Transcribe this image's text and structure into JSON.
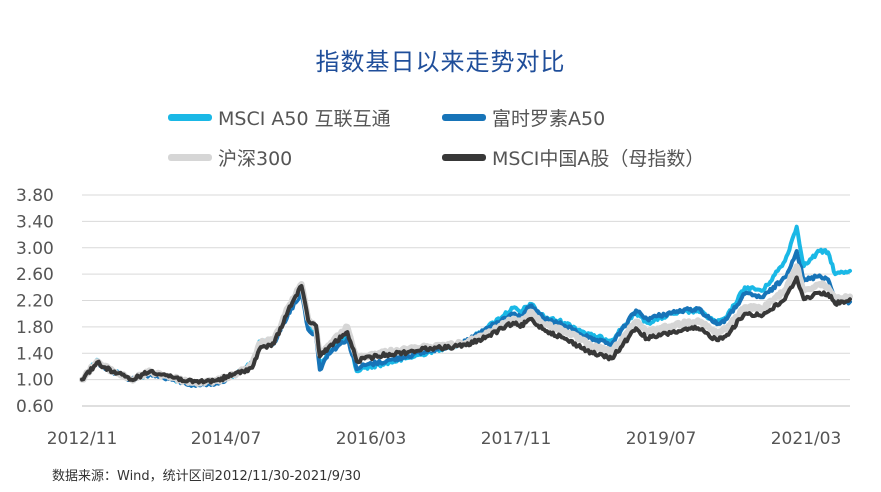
{
  "chart_data": {
    "type": "line",
    "title": "指数基日以来走势对比",
    "xlabel": "",
    "ylabel": "",
    "ylim": [
      0.6,
      3.8
    ],
    "yticks": [
      "3.80",
      "3.40",
      "3.00",
      "2.60",
      "2.20",
      "1.80",
      "1.40",
      "1.00",
      "0.60"
    ],
    "xticks": [
      "2012/11",
      "2014/07",
      "2016/03",
      "2017/11",
      "2019/07",
      "2021/03"
    ],
    "xlim": [
      "2012-11-30",
      "2021-09-30"
    ],
    "grid": true,
    "legend_position": "top",
    "series": [
      {
        "name": "MSCI A50 互联互通",
        "color": "#1ab8e6",
        "points": [
          [
            "2012-11-30",
            1.0
          ],
          [
            "2013-02-01",
            1.3
          ],
          [
            "2013-03-01",
            1.2
          ],
          [
            "2013-06-25",
            1.0
          ],
          [
            "2013-09-15",
            1.1
          ],
          [
            "2014-03-10",
            0.93
          ],
          [
            "2014-06-20",
            0.96
          ],
          [
            "2014-09-01",
            1.07
          ],
          [
            "2014-11-15",
            1.25
          ],
          [
            "2014-12-15",
            1.58
          ],
          [
            "2015-02-15",
            1.6
          ],
          [
            "2015-04-15",
            2.05
          ],
          [
            "2015-06-10",
            2.38
          ],
          [
            "2015-07-08",
            1.82
          ],
          [
            "2015-08-10",
            1.72
          ],
          [
            "2015-08-26",
            1.18
          ],
          [
            "2015-09-30",
            1.43
          ],
          [
            "2015-12-20",
            1.65
          ],
          [
            "2016-01-28",
            1.13
          ],
          [
            "2016-03-01",
            1.18
          ],
          [
            "2016-06-01",
            1.25
          ],
          [
            "2016-09-01",
            1.33
          ],
          [
            "2016-12-01",
            1.42
          ],
          [
            "2017-01-15",
            1.47
          ],
          [
            "2017-05-01",
            1.56
          ],
          [
            "2017-08-01",
            1.8
          ],
          [
            "2017-11-15",
            2.09
          ],
          [
            "2017-12-15",
            2.02
          ],
          [
            "2018-01-25",
            2.15
          ],
          [
            "2018-03-25",
            1.95
          ],
          [
            "2018-06-20",
            1.86
          ],
          [
            "2018-10-15",
            1.66
          ],
          [
            "2019-01-03",
            1.6
          ],
          [
            "2019-04-15",
            2.02
          ],
          [
            "2019-06-01",
            1.86
          ],
          [
            "2019-09-15",
            2.0
          ],
          [
            "2019-12-31",
            2.05
          ],
          [
            "2020-03-20",
            1.86
          ],
          [
            "2020-05-01",
            1.95
          ],
          [
            "2020-07-15",
            2.4
          ],
          [
            "2020-09-30",
            2.35
          ],
          [
            "2020-12-31",
            2.8
          ],
          [
            "2021-02-18",
            3.32
          ],
          [
            "2021-03-20",
            2.72
          ],
          [
            "2021-05-25",
            2.95
          ],
          [
            "2021-06-30",
            2.93
          ],
          [
            "2021-07-30",
            2.6
          ],
          [
            "2021-09-30",
            2.65
          ]
        ]
      },
      {
        "name": "富时罗素A50",
        "color": "#1774b8",
        "points": [
          [
            "2012-11-30",
            1.0
          ],
          [
            "2013-02-01",
            1.28
          ],
          [
            "2013-03-01",
            1.19
          ],
          [
            "2013-06-25",
            0.99
          ],
          [
            "2013-09-15",
            1.09
          ],
          [
            "2014-03-10",
            0.92
          ],
          [
            "2014-06-20",
            0.95
          ],
          [
            "2014-09-01",
            1.06
          ],
          [
            "2014-11-15",
            1.25
          ],
          [
            "2014-12-15",
            1.55
          ],
          [
            "2015-02-15",
            1.56
          ],
          [
            "2015-04-15",
            2.0
          ],
          [
            "2015-06-10",
            2.32
          ],
          [
            "2015-07-08",
            1.76
          ],
          [
            "2015-08-10",
            1.66
          ],
          [
            "2015-08-26",
            1.15
          ],
          [
            "2015-09-30",
            1.4
          ],
          [
            "2015-12-20",
            1.62
          ],
          [
            "2016-01-28",
            1.16
          ],
          [
            "2016-03-01",
            1.22
          ],
          [
            "2016-06-01",
            1.28
          ],
          [
            "2016-09-01",
            1.36
          ],
          [
            "2016-12-01",
            1.44
          ],
          [
            "2017-01-15",
            1.48
          ],
          [
            "2017-05-01",
            1.57
          ],
          [
            "2017-08-01",
            1.78
          ],
          [
            "2017-11-15",
            2.0
          ],
          [
            "2017-12-15",
            1.95
          ],
          [
            "2018-01-25",
            2.12
          ],
          [
            "2018-03-25",
            1.92
          ],
          [
            "2018-06-20",
            1.82
          ],
          [
            "2018-10-15",
            1.6
          ],
          [
            "2019-01-03",
            1.54
          ],
          [
            "2019-04-15",
            2.05
          ],
          [
            "2019-06-01",
            1.92
          ],
          [
            "2019-09-15",
            2.02
          ],
          [
            "2019-12-31",
            2.08
          ],
          [
            "2020-03-20",
            1.84
          ],
          [
            "2020-05-01",
            1.92
          ],
          [
            "2020-07-15",
            2.3
          ],
          [
            "2020-09-30",
            2.25
          ],
          [
            "2020-12-31",
            2.55
          ],
          [
            "2021-02-18",
            2.95
          ],
          [
            "2021-03-20",
            2.5
          ],
          [
            "2021-05-25",
            2.58
          ],
          [
            "2021-06-30",
            2.52
          ],
          [
            "2021-07-30",
            2.22
          ],
          [
            "2021-09-30",
            2.18
          ]
        ]
      },
      {
        "name": "沪深300",
        "color": "#d6d6d6",
        "points": [
          [
            "2012-11-30",
            1.0
          ],
          [
            "2013-02-01",
            1.28
          ],
          [
            "2013-03-01",
            1.2
          ],
          [
            "2013-06-25",
            1.0
          ],
          [
            "2013-09-15",
            1.12
          ],
          [
            "2014-03-10",
            0.95
          ],
          [
            "2014-06-20",
            0.98
          ],
          [
            "2014-09-01",
            1.08
          ],
          [
            "2014-11-15",
            1.22
          ],
          [
            "2014-12-15",
            1.55
          ],
          [
            "2015-02-15",
            1.6
          ],
          [
            "2015-04-15",
            2.1
          ],
          [
            "2015-06-10",
            2.45
          ],
          [
            "2015-07-08",
            1.92
          ],
          [
            "2015-08-10",
            1.8
          ],
          [
            "2015-08-26",
            1.38
          ],
          [
            "2015-09-30",
            1.52
          ],
          [
            "2015-12-20",
            1.8
          ],
          [
            "2016-01-28",
            1.32
          ],
          [
            "2016-03-01",
            1.36
          ],
          [
            "2016-06-01",
            1.42
          ],
          [
            "2016-09-01",
            1.46
          ],
          [
            "2016-12-01",
            1.5
          ],
          [
            "2017-01-15",
            1.5
          ],
          [
            "2017-05-01",
            1.56
          ],
          [
            "2017-08-01",
            1.7
          ],
          [
            "2017-11-15",
            1.92
          ],
          [
            "2017-12-15",
            1.86
          ],
          [
            "2018-01-25",
            2.03
          ],
          [
            "2018-03-25",
            1.84
          ],
          [
            "2018-06-20",
            1.74
          ],
          [
            "2018-10-15",
            1.5
          ],
          [
            "2019-01-03",
            1.42
          ],
          [
            "2019-04-15",
            1.88
          ],
          [
            "2019-06-01",
            1.72
          ],
          [
            "2019-09-15",
            1.82
          ],
          [
            "2019-12-31",
            1.9
          ],
          [
            "2020-03-20",
            1.7
          ],
          [
            "2020-05-01",
            1.78
          ],
          [
            "2020-07-15",
            2.1
          ],
          [
            "2020-09-30",
            2.08
          ],
          [
            "2020-12-31",
            2.36
          ],
          [
            "2021-02-18",
            2.72
          ],
          [
            "2021-03-20",
            2.35
          ],
          [
            "2021-05-25",
            2.45
          ],
          [
            "2021-06-30",
            2.4
          ],
          [
            "2021-07-30",
            2.24
          ],
          [
            "2021-09-30",
            2.26
          ]
        ]
      },
      {
        "name": "MSCI中国A股（母指数）",
        "color": "#383838",
        "points": [
          [
            "2012-11-30",
            1.0
          ],
          [
            "2013-02-01",
            1.26
          ],
          [
            "2013-03-01",
            1.19
          ],
          [
            "2013-06-25",
            1.0
          ],
          [
            "2013-09-15",
            1.13
          ],
          [
            "2014-03-10",
            0.96
          ],
          [
            "2014-06-20",
            0.99
          ],
          [
            "2014-09-01",
            1.08
          ],
          [
            "2014-11-15",
            1.18
          ],
          [
            "2014-12-15",
            1.46
          ],
          [
            "2015-02-15",
            1.55
          ],
          [
            "2015-04-15",
            2.05
          ],
          [
            "2015-06-10",
            2.42
          ],
          [
            "2015-07-08",
            1.9
          ],
          [
            "2015-08-10",
            1.82
          ],
          [
            "2015-08-26",
            1.35
          ],
          [
            "2015-09-30",
            1.48
          ],
          [
            "2015-12-20",
            1.72
          ],
          [
            "2016-01-28",
            1.28
          ],
          [
            "2016-03-01",
            1.32
          ],
          [
            "2016-06-01",
            1.38
          ],
          [
            "2016-09-01",
            1.42
          ],
          [
            "2016-12-01",
            1.48
          ],
          [
            "2017-01-15",
            1.48
          ],
          [
            "2017-05-01",
            1.52
          ],
          [
            "2017-08-01",
            1.66
          ],
          [
            "2017-11-15",
            1.86
          ],
          [
            "2017-12-15",
            1.8
          ],
          [
            "2018-01-25",
            1.92
          ],
          [
            "2018-03-25",
            1.76
          ],
          [
            "2018-06-20",
            1.62
          ],
          [
            "2018-10-15",
            1.4
          ],
          [
            "2019-01-03",
            1.32
          ],
          [
            "2019-04-15",
            1.78
          ],
          [
            "2019-06-01",
            1.62
          ],
          [
            "2019-09-15",
            1.72
          ],
          [
            "2019-12-31",
            1.78
          ],
          [
            "2020-03-20",
            1.6
          ],
          [
            "2020-05-01",
            1.68
          ],
          [
            "2020-07-15",
            2.0
          ],
          [
            "2020-09-30",
            1.98
          ],
          [
            "2020-12-31",
            2.22
          ],
          [
            "2021-02-18",
            2.55
          ],
          [
            "2021-03-20",
            2.22
          ],
          [
            "2021-05-25",
            2.32
          ],
          [
            "2021-06-30",
            2.3
          ],
          [
            "2021-07-30",
            2.15
          ],
          [
            "2021-09-30",
            2.22
          ]
        ]
      }
    ]
  },
  "legend": [
    {
      "label": "MSCI A50 互联互通"
    },
    {
      "label": "富时罗素A50"
    },
    {
      "label": "沪深300"
    },
    {
      "label": "MSCI中国A股（母指数）"
    }
  ],
  "footnote": "数据来源：Wind，统计区间2012/11/30-2021/9/30"
}
